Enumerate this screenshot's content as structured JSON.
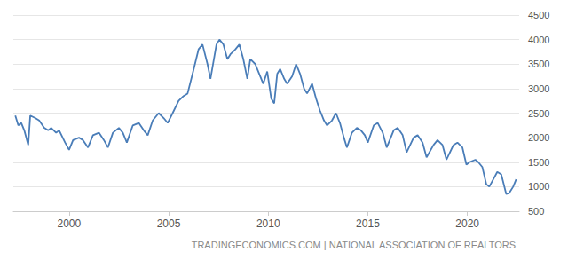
{
  "chart_data": {
    "type": "line",
    "source": "TRADINGECONOMICS.COM | NATIONAL ASSOCIATION OF REALTORS",
    "color": "#4a7db8",
    "grid": true,
    "xlim": [
      1997.2,
      2022.6
    ],
    "xticks": [
      2000,
      2005,
      2010,
      2015,
      2020
    ],
    "ylim": [
      500,
      4500
    ],
    "yticks": [
      500,
      1000,
      1500,
      2000,
      2500,
      3000,
      3500,
      4000,
      4500
    ],
    "x": [
      1997.3,
      1997.45,
      1997.6,
      1997.75,
      1997.95,
      1998.05,
      1998.3,
      1998.5,
      1998.75,
      1998.95,
      1999.1,
      1999.35,
      1999.5,
      1999.8,
      2000.0,
      2000.2,
      2000.5,
      2000.7,
      2000.95,
      2001.2,
      2001.5,
      2001.75,
      2001.95,
      2002.2,
      2002.5,
      2002.7,
      2002.9,
      2003.2,
      2003.5,
      2003.75,
      2003.95,
      2004.2,
      2004.5,
      2004.75,
      2004.95,
      2005.2,
      2005.5,
      2005.75,
      2005.95,
      2006.2,
      2006.5,
      2006.7,
      2006.95,
      2007.1,
      2007.4,
      2007.55,
      2007.75,
      2007.95,
      2008.1,
      2008.35,
      2008.55,
      2008.75,
      2008.95,
      2009.1,
      2009.35,
      2009.55,
      2009.75,
      2009.95,
      2010.15,
      2010.3,
      2010.45,
      2010.6,
      2010.8,
      2010.95,
      2011.2,
      2011.4,
      2011.6,
      2011.8,
      2011.95,
      2012.2,
      2012.4,
      2012.6,
      2012.8,
      2012.95,
      2013.2,
      2013.4,
      2013.6,
      2013.8,
      2013.95,
      2014.2,
      2014.45,
      2014.65,
      2014.85,
      2015.0,
      2015.3,
      2015.5,
      2015.75,
      2015.95,
      2016.3,
      2016.5,
      2016.75,
      2016.95,
      2017.3,
      2017.5,
      2017.75,
      2017.95,
      2018.3,
      2018.5,
      2018.75,
      2018.95,
      2019.3,
      2019.5,
      2019.75,
      2019.95,
      2020.1,
      2020.4,
      2020.55,
      2020.75,
      2020.95,
      2021.1,
      2021.3,
      2021.5,
      2021.7,
      2021.95,
      2022.1,
      2022.3,
      2022.45
    ],
    "values": [
      2450,
      2250,
      2300,
      2150,
      1850,
      2450,
      2400,
      2350,
      2200,
      2150,
      2200,
      2100,
      2150,
      1900,
      1750,
      1950,
      2000,
      1950,
      1800,
      2050,
      2100,
      1950,
      1800,
      2100,
      2200,
      2100,
      1900,
      2250,
      2300,
      2150,
      2050,
      2350,
      2500,
      2400,
      2300,
      2500,
      2750,
      2850,
      2900,
      3300,
      3800,
      3900,
      3500,
      3200,
      3900,
      4000,
      3900,
      3600,
      3700,
      3800,
      3900,
      3600,
      3200,
      3600,
      3500,
      3300,
      3100,
      3350,
      2800,
      2700,
      3300,
      3400,
      3200,
      3100,
      3250,
      3500,
      3300,
      3000,
      2900,
      3100,
      2800,
      2550,
      2350,
      2250,
      2350,
      2500,
      2300,
      2000,
      1800,
      2100,
      2200,
      2150,
      2050,
      1900,
      2250,
      2300,
      2100,
      1800,
      2150,
      2200,
      2050,
      1700,
      2000,
      2050,
      1900,
      1600,
      1850,
      1950,
      1850,
      1550,
      1850,
      1900,
      1800,
      1450,
      1500,
      1550,
      1500,
      1400,
      1050,
      1000,
      1150,
      1300,
      1250,
      850,
      870,
      1000,
      1150
    ]
  }
}
